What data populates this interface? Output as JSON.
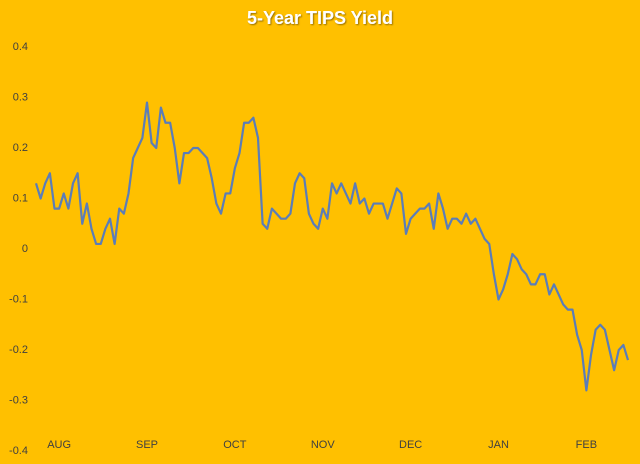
{
  "chart_data": {
    "type": "line",
    "title": "5-Year TIPS Yield",
    "categories": [
      null,
      null,
      null,
      null,
      null,
      "AUG",
      null,
      null,
      null,
      null,
      null,
      null,
      null,
      null,
      null,
      null,
      null,
      null,
      null,
      null,
      null,
      null,
      null,
      null,
      "SEP",
      null,
      null,
      null,
      null,
      null,
      null,
      null,
      null,
      null,
      null,
      null,
      null,
      null,
      null,
      null,
      null,
      null,
      null,
      "OCT",
      null,
      null,
      null,
      null,
      null,
      null,
      null,
      null,
      null,
      null,
      null,
      null,
      null,
      null,
      null,
      null,
      null,
      null,
      "NOV",
      null,
      null,
      null,
      null,
      null,
      null,
      null,
      null,
      null,
      null,
      null,
      null,
      null,
      null,
      null,
      null,
      null,
      null,
      "DEC",
      null,
      null,
      null,
      null,
      null,
      null,
      null,
      null,
      null,
      null,
      null,
      null,
      null,
      null,
      null,
      null,
      null,
      null,
      "JAN",
      null,
      null,
      null,
      null,
      null,
      null,
      null,
      null,
      null,
      null,
      null,
      null,
      null,
      null,
      null,
      null,
      null,
      null,
      "FEB",
      null,
      null,
      null,
      null,
      null,
      null,
      null,
      null,
      null
    ],
    "values": [
      0.13,
      0.1,
      0.13,
      0.15,
      0.08,
      0.08,
      0.11,
      0.08,
      0.13,
      0.15,
      0.05,
      0.09,
      0.04,
      0.01,
      0.01,
      0.04,
      0.06,
      0.01,
      0.08,
      0.07,
      0.11,
      0.18,
      0.2,
      0.22,
      0.29,
      0.21,
      0.2,
      0.28,
      0.25,
      0.25,
      0.2,
      0.13,
      0.19,
      0.19,
      0.2,
      0.2,
      0.19,
      0.18,
      0.14,
      0.09,
      0.07,
      0.11,
      0.11,
      0.16,
      0.19,
      0.25,
      0.25,
      0.26,
      0.22,
      0.05,
      0.04,
      0.08,
      0.07,
      0.06,
      0.06,
      0.07,
      0.13,
      0.15,
      0.14,
      0.07,
      0.05,
      0.04,
      0.08,
      0.06,
      0.13,
      0.11,
      0.13,
      0.11,
      0.09,
      0.13,
      0.09,
      0.1,
      0.07,
      0.09,
      0.09,
      0.09,
      0.06,
      0.09,
      0.12,
      0.11,
      0.03,
      0.06,
      0.07,
      0.08,
      0.08,
      0.09,
      0.04,
      0.11,
      0.08,
      0.04,
      0.06,
      0.06,
      0.05,
      0.07,
      0.05,
      0.06,
      0.04,
      0.02,
      0.01,
      -0.05,
      -0.1,
      -0.08,
      -0.05,
      -0.01,
      -0.02,
      -0.04,
      -0.05,
      -0.07,
      -0.07,
      -0.05,
      -0.05,
      -0.09,
      -0.07,
      -0.09,
      -0.11,
      -0.12,
      -0.12,
      -0.17,
      -0.2,
      -0.28,
      -0.21,
      -0.16,
      -0.15,
      -0.16,
      -0.2,
      -0.24,
      -0.2,
      -0.19,
      -0.22
    ],
    "color": "#5B7DB8",
    "ylim": [
      -0.4,
      0.4
    ],
    "yticks": [
      0.4,
      0.3,
      0.2,
      0.1,
      0,
      -0.1,
      -0.2,
      -0.3,
      -0.4
    ],
    "grid": false
  }
}
